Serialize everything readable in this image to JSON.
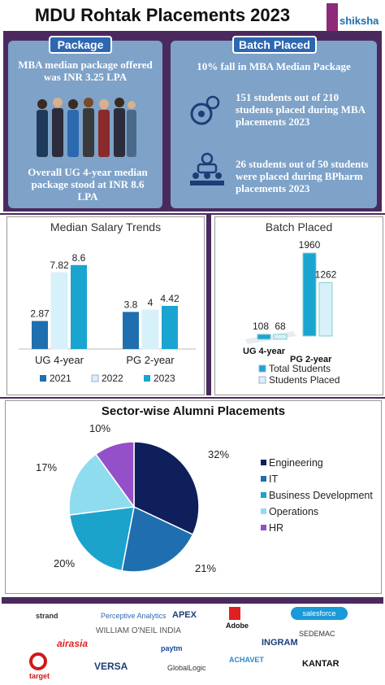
{
  "title": "MDU Rohtak Placements 2023",
  "brand": "shiksha",
  "left_panel": {
    "header": "Package",
    "text1": "MBA median package offered was INR 3.25 LPA",
    "text2": "Overall UG 4-year median package stood at INR 8.6 LPA"
  },
  "right_panel": {
    "header": "Batch Placed",
    "text1": "10%  fall in MBA Median  Package",
    "text2": "151 students out of 210 students placed during MBA placements 2023",
    "text3": "26 students out of 50 students were placed during BPharm placements 2023"
  },
  "colors": {
    "dark_purple": "#4a2a5e",
    "panel_blue": "#7ea2c8",
    "header_blue": "#2e67b1",
    "c2021": "#1f6fb0",
    "c2022": "#d6f1fa",
    "c2023": "#1aa5d0"
  },
  "chart_data": [
    {
      "type": "bar",
      "title": "Median Salary Trends",
      "categories": [
        "UG 4-year",
        "PG 2-year"
      ],
      "series": [
        {
          "name": "2021",
          "values": [
            2.87,
            3.8
          ]
        },
        {
          "name": "2022",
          "values": [
            7.82,
            4
          ]
        },
        {
          "name": "2023",
          "values": [
            8.6,
            4.42
          ]
        }
      ],
      "labels": [
        [
          "2.87",
          "7.82",
          "8.6"
        ],
        [
          "3.8",
          "4",
          "4.42"
        ]
      ],
      "legend": "bottom"
    },
    {
      "type": "bar",
      "title": "Batch Placed",
      "categories": [
        "UG 4-year",
        "PG 2-year"
      ],
      "series": [
        {
          "name": "Total Students",
          "values": [
            108,
            1960
          ]
        },
        {
          "name": "Students Placed",
          "values": [
            68,
            1262
          ]
        }
      ],
      "labels": [
        [
          "108",
          "68"
        ],
        [
          "1960",
          "1262"
        ]
      ],
      "legend": "bottom"
    },
    {
      "type": "pie",
      "title": "Sector-wise Alumni Placements",
      "slices": [
        {
          "name": "Engineering",
          "value": 32,
          "label": "32%",
          "color": "#0f1f5c"
        },
        {
          "name": "IT",
          "value": 21,
          "label": "21%",
          "color": "#1f6fb0"
        },
        {
          "name": "Business Development",
          "value": 20,
          "label": "20%",
          "color": "#1ba3cc"
        },
        {
          "name": "Operations",
          "value": 17,
          "label": "17%",
          "color": "#8fdcef"
        },
        {
          "name": "HR",
          "value": 10,
          "label": "10%",
          "color": "#9450c8"
        }
      ],
      "legend": "right"
    }
  ],
  "recruiters": [
    "strand",
    "Perceptive Analytics",
    "APEX",
    "Adobe",
    "salesforce",
    "WILLIAM O'NEIL INDIA",
    "SEDEMAC",
    "airasia",
    "paytm",
    "INGRAM",
    "target",
    "VERSA",
    "GlobalLogic",
    "ACHAVET",
    "KANTAR"
  ]
}
